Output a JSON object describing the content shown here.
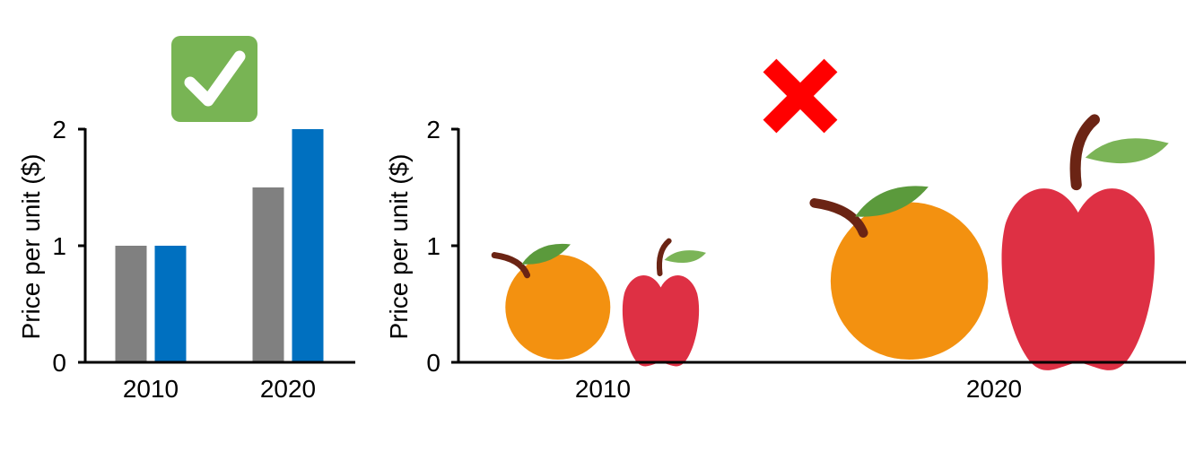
{
  "chart_data": [
    {
      "type": "bar",
      "verdict_icon": "checkmark-icon",
      "verdict_color": "#78b454",
      "categories": [
        "2010",
        "2020"
      ],
      "series": [
        {
          "values": [
            1,
            1.5
          ],
          "color": "#808080"
        },
        {
          "values": [
            1,
            2
          ],
          "color": "#0070c0"
        }
      ],
      "ylabel": "Price per unit ($)",
      "ylim": [
        0,
        2
      ],
      "yticks": [
        "0",
        "1",
        "2"
      ],
      "grid": false,
      "legend": "none"
    },
    {
      "type": "pictograph",
      "verdict_icon": "cross-icon",
      "verdict_color": "#ff0000",
      "categories": [
        "2010",
        "2020"
      ],
      "series": [
        {
          "icon": "orange-icon",
          "values": [
            1,
            1.5
          ],
          "color": "#f39110"
        },
        {
          "icon": "apple-icon",
          "values": [
            1,
            2
          ],
          "color": "#de3044"
        }
      ],
      "ylabel": "Price per unit ($)",
      "ylim": [
        0,
        2
      ],
      "yticks": [
        "0",
        "1",
        "2"
      ],
      "grid": false,
      "legend": "none"
    }
  ]
}
